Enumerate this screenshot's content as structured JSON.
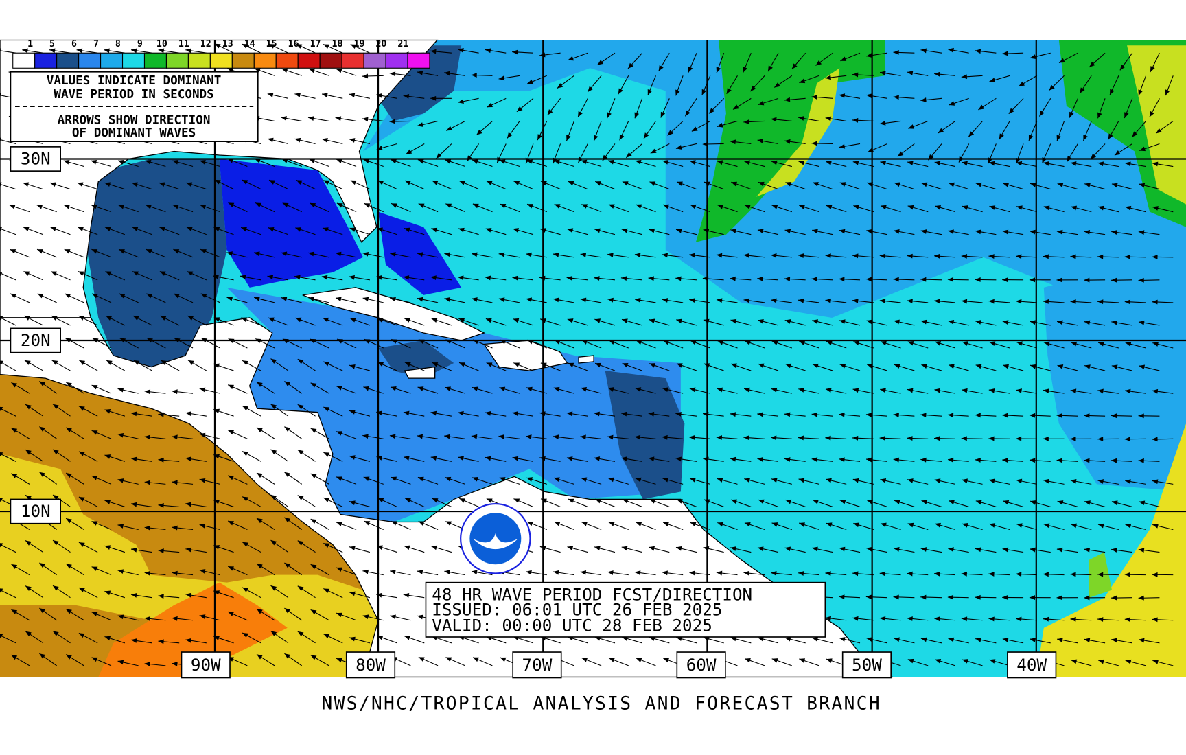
{
  "legend": {
    "labels": [
      "1",
      "5",
      "6",
      "7",
      "8",
      "9",
      "10",
      "11",
      "12",
      "13",
      "14",
      "15",
      "16",
      "17",
      "18",
      "19",
      "20",
      "21"
    ],
    "colors": [
      "#ffffff",
      "#1a22e0",
      "#1b4f8a",
      "#2a86ec",
      "#1eaaea",
      "#1ed9e6",
      "#10b82a",
      "#7ed628",
      "#c8e020",
      "#f0e020",
      "#c88a10",
      "#f88a10",
      "#f04a10",
      "#d01010",
      "#a01010",
      "#e83030",
      "#a060d0",
      "#a030f0",
      "#f010f0"
    ]
  },
  "note": {
    "line1": "VALUES INDICATE DOMINANT",
    "line2": "WAVE PERIOD IN SECONDS",
    "line3": "ARROWS SHOW DIRECTION",
    "line4": "OF DOMINANT WAVES"
  },
  "latitude_labels": [
    "30N",
    "20N",
    "10N"
  ],
  "longitude_labels": [
    "90W",
    "80W",
    "70W",
    "60W",
    "50W",
    "40W"
  ],
  "forecast": {
    "title": "48 HR WAVE PERIOD FCST/DIRECTION",
    "issued": "ISSUED:  06:01 UTC 26 FEB 2025",
    "valid": "VALID:   00:00 UTC 28 FEB 2025"
  },
  "footer": "NWS/NHC/TROPICAL ANALYSIS AND FORECAST BRANCH"
}
